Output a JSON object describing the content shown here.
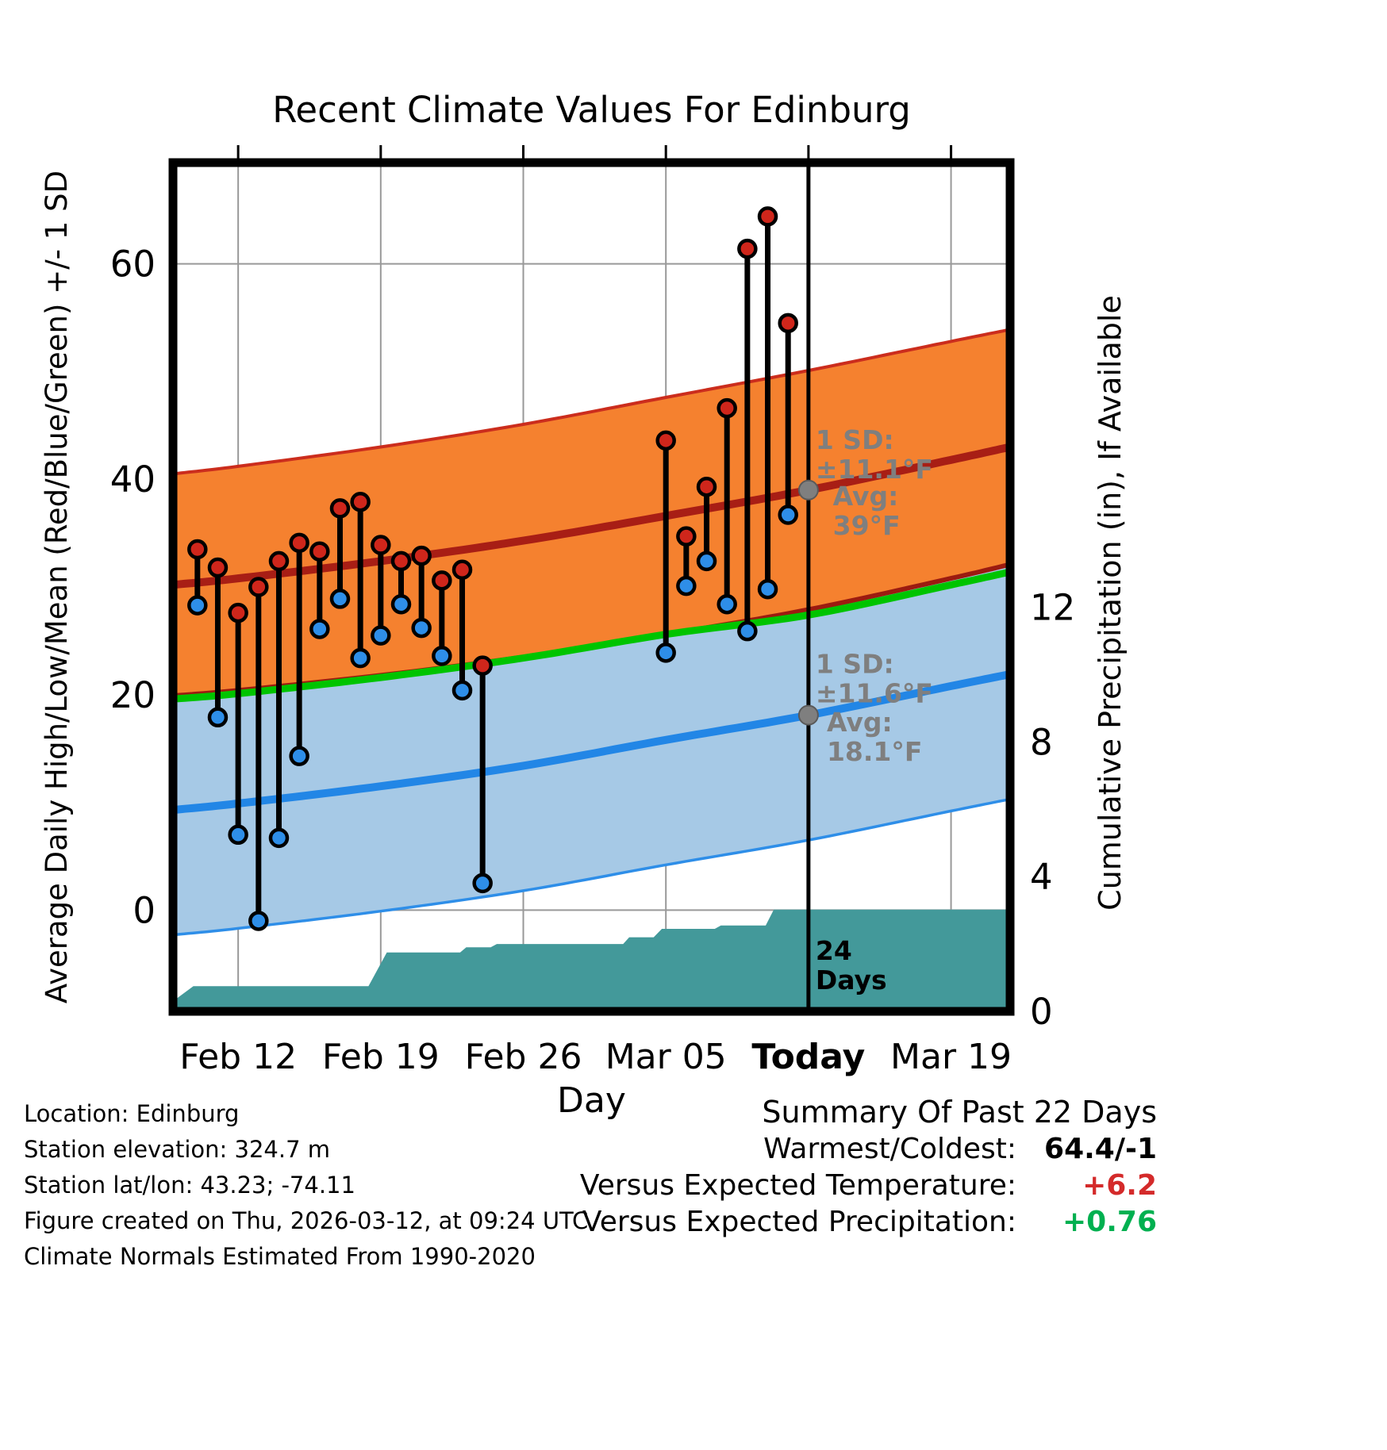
{
  "chart_data": {
    "type": "line",
    "title": "Recent Climate Values For Edinburg",
    "xlabel": "Day",
    "ylabel_left": "Average Daily High/Low/Mean (Red/Blue/Green) +/- 1 SD",
    "ylabel_right": "Cumulative Precipitation (in), If Available",
    "x_axis": {
      "unit": "days relative to Feb 12",
      "range_days": [
        -3.2,
        37.9
      ],
      "ticks": [
        {
          "day": 0,
          "label": "Feb 12",
          "bold": false
        },
        {
          "day": 7,
          "label": "Feb 19",
          "bold": false
        },
        {
          "day": 14,
          "label": "Feb 26",
          "bold": false
        },
        {
          "day": 21,
          "label": "Mar 05",
          "bold": false
        },
        {
          "day": 28,
          "label": "Today",
          "bold": true
        },
        {
          "day": 35,
          "label": "Mar 19",
          "bold": false
        }
      ]
    },
    "y_axis_temp": {
      "range": [
        -9.4,
        69.4
      ],
      "ticks": [
        0,
        20,
        40,
        60
      ]
    },
    "y_axis_precip": {
      "range": [
        0,
        25.2
      ],
      "ticks": [
        0,
        4,
        8,
        12
      ]
    },
    "normals": {
      "x": [
        -3.2,
        0,
        7,
        14,
        21,
        28,
        35,
        37.9
      ],
      "high_avg": [
        30.2,
        30.8,
        32.4,
        34.3,
        36.6,
        39.0,
        41.8,
        43.0
      ],
      "high_sd": [
        10.3,
        10.4,
        10.6,
        10.8,
        11.0,
        11.1,
        11.0,
        10.9
      ],
      "low_avg": [
        9.3,
        9.9,
        11.5,
        13.4,
        15.8,
        18.1,
        20.8,
        21.9
      ],
      "low_sd": [
        11.6,
        11.6,
        11.6,
        11.6,
        11.6,
        11.6,
        11.6,
        11.6
      ],
      "mean": [
        19.6,
        20.1,
        21.6,
        23.4,
        25.6,
        27.4,
        30.2,
        31.4
      ]
    },
    "daily_high_low": [
      {
        "day": -2,
        "high": 33.5,
        "low": 28.3
      },
      {
        "day": -1,
        "high": 31.8,
        "low": 17.9
      },
      {
        "day": 0,
        "high": 27.6,
        "low": 7.0
      },
      {
        "day": 1,
        "high": 30.0,
        "low": -1.0
      },
      {
        "day": 2,
        "high": 32.4,
        "low": 6.7
      },
      {
        "day": 3,
        "high": 34.1,
        "low": 14.3
      },
      {
        "day": 4,
        "high": 33.3,
        "low": 26.1
      },
      {
        "day": 5,
        "high": 37.3,
        "low": 28.9
      },
      {
        "day": 6,
        "high": 37.9,
        "low": 23.4
      },
      {
        "day": 7,
        "high": 33.9,
        "low": 25.5
      },
      {
        "day": 8,
        "high": 32.4,
        "low": 28.4
      },
      {
        "day": 9,
        "high": 32.9,
        "low": 26.2
      },
      {
        "day": 10,
        "high": 30.6,
        "low": 23.6
      },
      {
        "day": 11,
        "high": 31.6,
        "low": 20.4
      },
      {
        "day": 12,
        "high": 22.7,
        "low": 2.5
      },
      {
        "day": 21,
        "high": 43.6,
        "low": 23.9
      },
      {
        "day": 22,
        "high": 34.7,
        "low": 30.1
      },
      {
        "day": 23,
        "high": 39.3,
        "low": 32.4
      },
      {
        "day": 24,
        "high": 46.6,
        "low": 28.4
      },
      {
        "day": 25,
        "high": 61.4,
        "low": 25.9
      },
      {
        "day": 26,
        "high": 64.4,
        "low": 29.8
      },
      {
        "day": 27,
        "high": 54.5,
        "low": 36.7
      }
    ],
    "precip_cumulative_steps": [
      [
        -3.2,
        0.3
      ],
      [
        -2.2,
        0.75
      ],
      [
        6.4,
        0.75
      ],
      [
        7.3,
        1.75
      ],
      [
        10.9,
        1.75
      ],
      [
        11.2,
        1.9
      ],
      [
        12.4,
        1.9
      ],
      [
        12.7,
        2.0
      ],
      [
        18.9,
        2.0
      ],
      [
        19.2,
        2.2
      ],
      [
        20.4,
        2.2
      ],
      [
        20.8,
        2.45
      ],
      [
        23.4,
        2.45
      ],
      [
        23.7,
        2.55
      ],
      [
        25.9,
        2.55
      ],
      [
        26.3,
        3.02
      ],
      [
        37.9,
        3.02
      ]
    ],
    "today": {
      "day": 28,
      "high_avg": 39,
      "high_sd": 11.1,
      "low_avg": 18.1,
      "low_sd": 11.6
    },
    "annotations": [
      {
        "day": 28.35,
        "temp": 42.8,
        "lines": [
          "1 SD:",
          "±11.1°F"
        ],
        "color": "#7f7f7f"
      },
      {
        "day": 29.2,
        "temp": 37.6,
        "lines": [
          "Avg:",
          "39°F"
        ],
        "color": "#7f7f7f"
      },
      {
        "day": 28.35,
        "temp": 22.0,
        "lines": [
          "1 SD:",
          "±11.6°F"
        ],
        "color": "#7f7f7f"
      },
      {
        "day": 28.9,
        "temp": 16.6,
        "lines": [
          "Avg:",
          "18.1°F"
        ],
        "color": "#7f7f7f"
      },
      {
        "day": 28.35,
        "temp": -4.6,
        "lines": [
          "24",
          "Days"
        ],
        "color": "#000000"
      }
    ]
  },
  "footer": {
    "lines": [
      "Location: Edinburg",
      "Station elevation: 324.7 m",
      "Station lat/lon: 43.23; -74.11",
      "Figure created on Thu, 2026-03-12, at 09:24 UTC",
      "Climate Normals Estimated From 1990-2020"
    ]
  },
  "summary": {
    "title": "Summary Of Past 22 Days",
    "rows": [
      {
        "label": "Warmest/Coldest:",
        "value": "64.4/-1",
        "color": "#000000"
      },
      {
        "label": "Versus Expected Temperature:",
        "value": "+6.2",
        "color": "#d42a2a"
      },
      {
        "label": "Versus Expected Precipitation:",
        "value": "+0.76",
        "color": "#00b050"
      }
    ]
  },
  "colors": {
    "high_band_fill": "#f5812f",
    "high_band_edge": "#cb2d1d",
    "high_band_bottom_edge": "#9c1b10",
    "high_avg_line": "#a81e15",
    "low_band_fill": "#a6c9e6",
    "low_band_edge": "#2e8ee8",
    "low_avg_line": "#2286e6",
    "mean_line": "#00c400",
    "high_dot": "#cf261b",
    "low_dot": "#2e8ee8",
    "stem": "#000000",
    "precip_fill": "#43999a",
    "today_marker": "#7f7f7f",
    "grid": "#999999"
  }
}
